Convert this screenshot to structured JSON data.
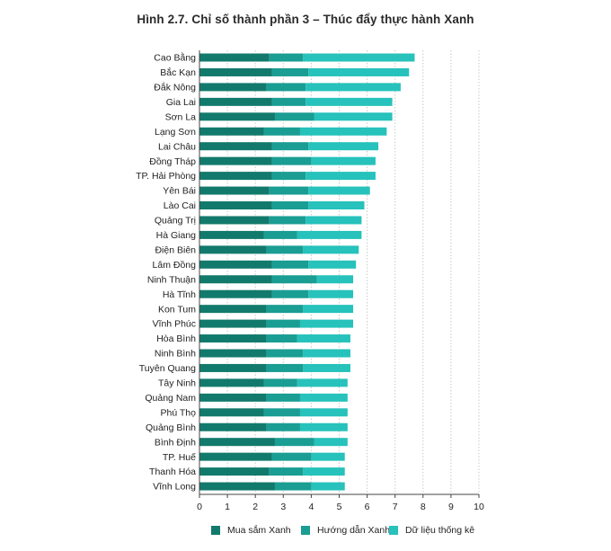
{
  "chart_data": {
    "type": "bar",
    "orientation": "horizontal",
    "stacked": true,
    "title": "Hình 2.7. Chỉ số thành phần 3 – Thúc đẩy thực hành Xanh",
    "xlabel": "",
    "ylabel": "",
    "xlim": [
      0,
      10
    ],
    "xticks": [
      "0",
      "1",
      "2",
      "3",
      "4",
      "5",
      "6",
      "7",
      "8",
      "9",
      "10"
    ],
    "grid": "vertical-dashed",
    "legend_position": "bottom",
    "colors": [
      "#127a6c",
      "#1a9d93",
      "#26c2bb"
    ],
    "categories": [
      "Cao Bằng",
      "Bắc Kạn",
      "Đắk Nông",
      "Gia Lai",
      "Sơn La",
      "Lạng Sơn",
      "Lai Châu",
      "Đồng Tháp",
      "TP. Hải Phòng",
      "Yên Bái",
      "Lào Cai",
      "Quảng Trị",
      "Hà Giang",
      "Điện Biên",
      "Lâm Đồng",
      "Ninh Thuận",
      "Hà Tĩnh",
      "Kon Tum",
      "Vĩnh Phúc",
      "Hòa Bình",
      "Ninh Bình",
      "Tuyên Quang",
      "Tây Ninh",
      "Quảng Nam",
      "Phú Thọ",
      "Quảng Bình",
      "Bình Định",
      "TP. Huế",
      "Thanh Hóa",
      "Vĩnh Long"
    ],
    "series": [
      {
        "name": "Mua sắm Xanh",
        "values": [
          2.5,
          2.6,
          2.4,
          2.6,
          2.7,
          2.3,
          2.6,
          2.6,
          2.6,
          2.5,
          2.6,
          2.5,
          2.3,
          2.4,
          2.6,
          2.6,
          2.6,
          2.4,
          2.4,
          2.4,
          2.4,
          2.4,
          2.3,
          2.4,
          2.3,
          2.4,
          2.7,
          2.6,
          2.5,
          2.7
        ]
      },
      {
        "name": "Hướng dẫn Xanh",
        "values": [
          1.2,
          1.3,
          1.4,
          1.2,
          1.4,
          1.3,
          1.3,
          1.4,
          1.2,
          1.4,
          1.3,
          1.3,
          1.2,
          1.3,
          1.3,
          1.6,
          1.3,
          1.3,
          1.2,
          1.1,
          1.3,
          1.3,
          1.2,
          1.2,
          1.3,
          1.2,
          1.4,
          1.4,
          1.2,
          1.3
        ]
      },
      {
        "name": "Dữ liệu thống kê",
        "values": [
          4.0,
          3.6,
          3.4,
          3.1,
          2.8,
          3.1,
          2.5,
          2.3,
          2.5,
          2.2,
          2.0,
          2.0,
          2.3,
          2.0,
          1.7,
          1.3,
          1.6,
          1.8,
          1.9,
          1.9,
          1.7,
          1.7,
          1.8,
          1.7,
          1.7,
          1.7,
          1.2,
          1.2,
          1.5,
          1.2
        ]
      }
    ]
  }
}
